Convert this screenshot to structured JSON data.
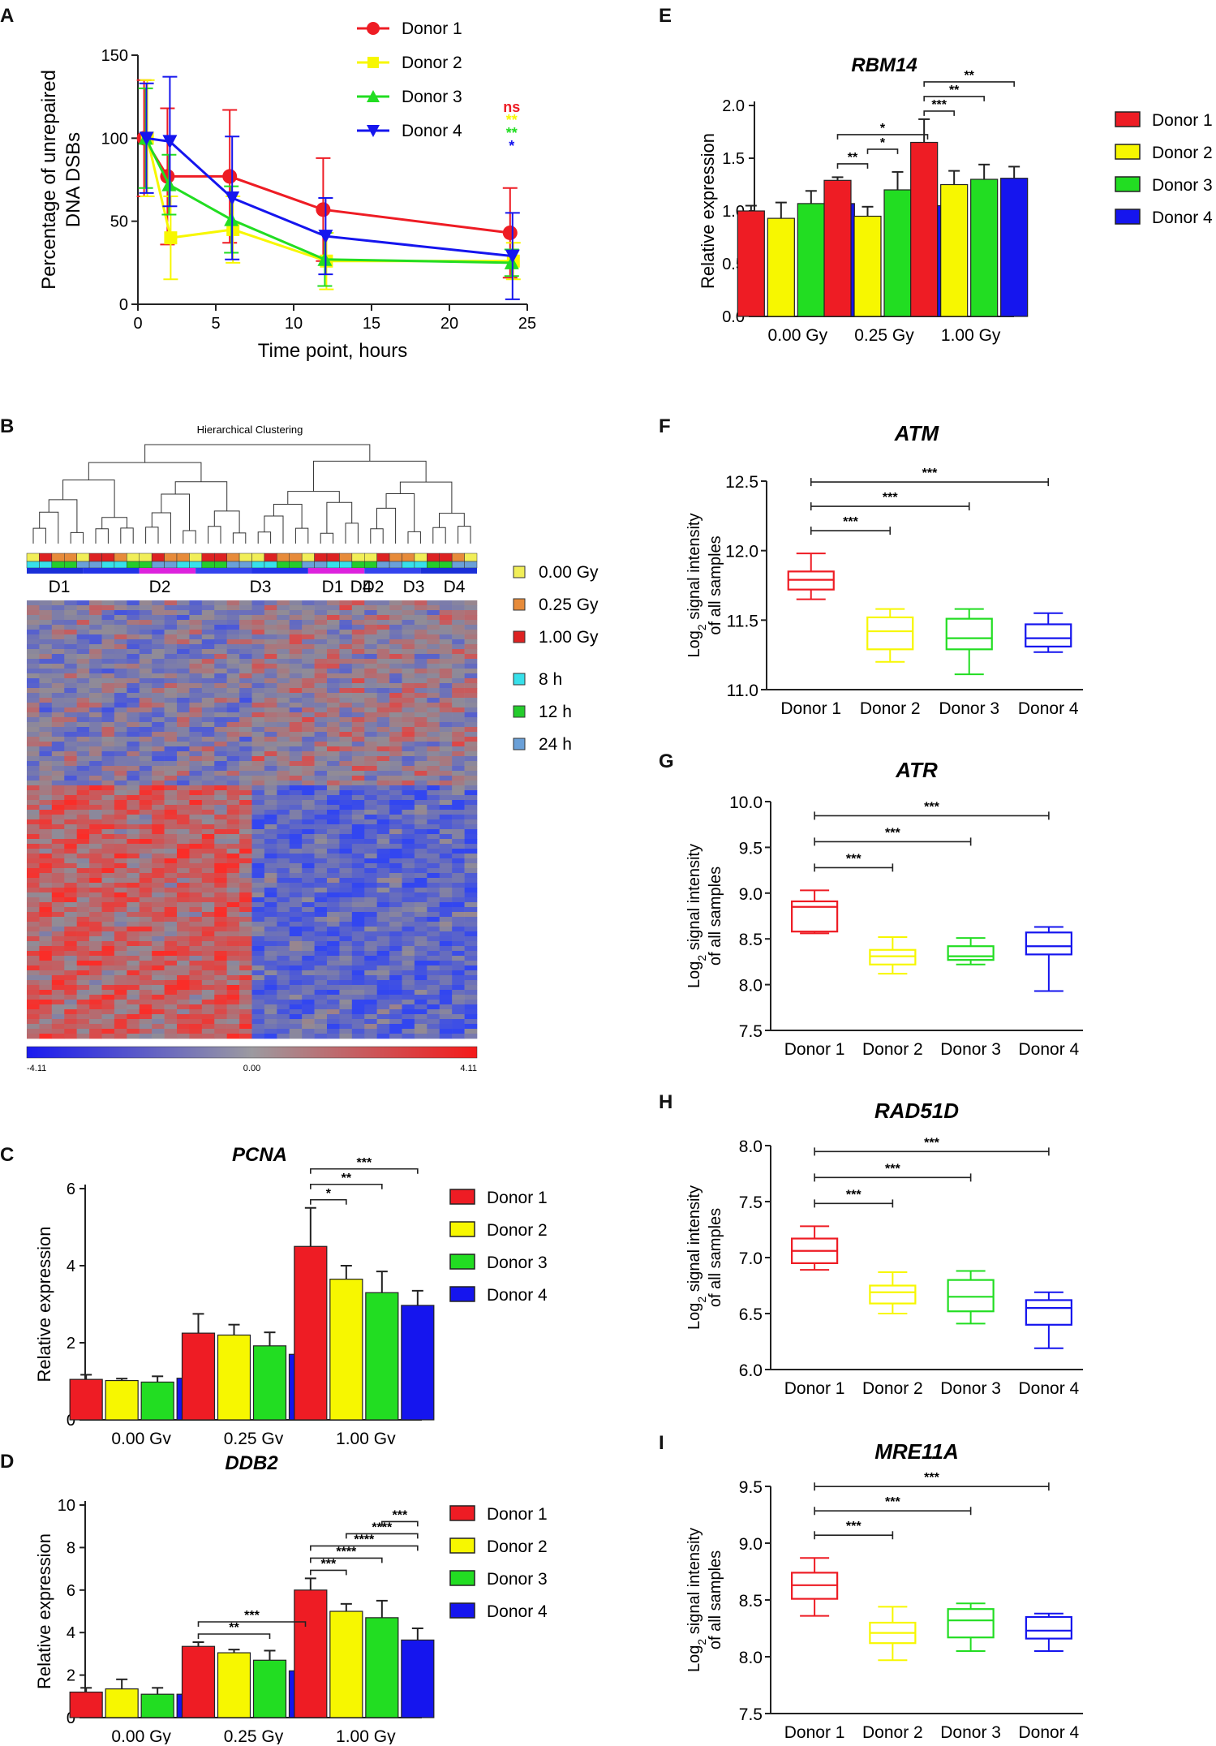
{
  "panels": {
    "A": "A",
    "B": "B",
    "C": "C",
    "D": "D",
    "E": "E",
    "F": "F",
    "G": "G",
    "H": "H",
    "I": "I"
  },
  "colors": {
    "donor1": "#ee1c24",
    "donor2": "#f7f700",
    "donor3": "#22dd22",
    "donor4": "#1515ee"
  },
  "chart_data": [
    {
      "id": "A",
      "type": "line",
      "xlabel": "Time point, hours",
      "ylabel": "Percentage of unrepaired DNA DSBs",
      "xlim": [
        0,
        25
      ],
      "ylim": [
        0,
        150
      ],
      "xticks": [
        0,
        5,
        10,
        15,
        20,
        25
      ],
      "yticks": [
        0,
        50,
        100,
        150
      ],
      "series": [
        {
          "name": "Donor 1",
          "marker": "circle",
          "x": [
            0.5,
            2,
            6,
            12,
            24
          ],
          "y": [
            100,
            77,
            77,
            57,
            43
          ],
          "err": [
            35,
            41,
            40,
            31,
            27
          ]
        },
        {
          "name": "Donor 2",
          "marker": "square",
          "x": [
            0.5,
            2,
            6,
            12,
            24
          ],
          "y": [
            100,
            40,
            45,
            26,
            26
          ],
          "err": [
            35,
            25,
            20,
            17,
            11
          ]
        },
        {
          "name": "Donor 3",
          "marker": "triangle-up",
          "x": [
            0.5,
            2,
            6,
            12,
            24
          ],
          "y": [
            100,
            72,
            51,
            27,
            25
          ],
          "err": [
            30,
            18,
            20,
            16,
            8
          ]
        },
        {
          "name": "Donor 4",
          "marker": "triangle-down",
          "x": [
            0.5,
            2,
            6,
            12,
            24
          ],
          "y": [
            100,
            98,
            64,
            41,
            29
          ],
          "err": [
            33,
            39,
            37,
            23,
            26
          ]
        }
      ],
      "annotations": [
        {
          "text": "ns",
          "series": 0
        },
        {
          "text": "**",
          "series": 1
        },
        {
          "text": "**",
          "series": 2
        },
        {
          "text": "*",
          "series": 3
        }
      ]
    },
    {
      "id": "E",
      "type": "bar",
      "title": "RBM14",
      "ylabel": "Relative expression",
      "categories": [
        "0.00 Gy",
        "0.25 Gy",
        "1.00 Gy"
      ],
      "ylim": [
        0,
        2.0
      ],
      "yticks": [
        "0.0",
        "0.5",
        "1.0",
        "1.5",
        "2.0"
      ],
      "series": [
        {
          "name": "Donor 1",
          "values": [
            1.0,
            1.29,
            1.65
          ],
          "err": [
            0.05,
            0.03,
            0.22
          ]
        },
        {
          "name": "Donor 2",
          "values": [
            0.93,
            0.95,
            1.25
          ],
          "err": [
            0.15,
            0.09,
            0.13
          ]
        },
        {
          "name": "Donor 3",
          "values": [
            1.07,
            1.2,
            1.3
          ],
          "err": [
            0.12,
            0.17,
            0.14
          ]
        },
        {
          "name": "Donor 4",
          "values": [
            1.07,
            1.05,
            1.31
          ],
          "err": [
            0.07,
            0.19,
            0.11
          ]
        }
      ],
      "significance": [
        {
          "group": 1,
          "from": 0,
          "to": 1,
          "text": "**"
        },
        {
          "group": 1,
          "from": 1,
          "to": 2,
          "text": "*"
        },
        {
          "group": 1,
          "from": 0,
          "to": 3,
          "text": "*"
        },
        {
          "group": 2,
          "from": 0,
          "to": 1,
          "text": "***"
        },
        {
          "group": 2,
          "from": 0,
          "to": 2,
          "text": "**"
        },
        {
          "group": 2,
          "from": 0,
          "to": 3,
          "text": "**"
        }
      ]
    },
    {
      "id": "C",
      "type": "bar",
      "title": "PCNA",
      "ylabel": "Relative expression",
      "categories": [
        "0.00 Gy",
        "0.25 Gy",
        "1.00 Gy"
      ],
      "ylim": [
        0,
        6
      ],
      "yticks": [
        "0",
        "2",
        "4",
        "6"
      ],
      "series": [
        {
          "name": "Donor 1",
          "values": [
            1.05,
            2.25,
            4.5
          ],
          "err": [
            0.12,
            0.5,
            1.0
          ]
        },
        {
          "name": "Donor 2",
          "values": [
            1.02,
            2.2,
            3.65
          ],
          "err": [
            0.05,
            0.27,
            0.35
          ]
        },
        {
          "name": "Donor 3",
          "values": [
            0.98,
            1.92,
            3.3
          ],
          "err": [
            0.15,
            0.35,
            0.55
          ]
        },
        {
          "name": "Donor 4",
          "values": [
            1.08,
            1.7,
            2.97
          ],
          "err": [
            0.17,
            0.25,
            0.38
          ]
        }
      ],
      "significance": [
        {
          "group": 2,
          "from": 0,
          "to": 1,
          "text": "*"
        },
        {
          "group": 2,
          "from": 0,
          "to": 2,
          "text": "**"
        },
        {
          "group": 2,
          "from": 0,
          "to": 3,
          "text": "***"
        }
      ]
    },
    {
      "id": "D",
      "type": "bar",
      "title": "DDB2",
      "ylabel": "Relative expression",
      "categories": [
        "0.00 Gy",
        "0.25 Gy",
        "1.00 Gy"
      ],
      "ylim": [
        0,
        10
      ],
      "yticks": [
        "0",
        "2",
        "4",
        "6",
        "8",
        "10"
      ],
      "series": [
        {
          "name": "Donor 1",
          "values": [
            1.2,
            3.35,
            6.0
          ],
          "err": [
            0.2,
            0.2,
            0.55
          ]
        },
        {
          "name": "Donor 2",
          "values": [
            1.35,
            3.05,
            5.0
          ],
          "err": [
            0.45,
            0.15,
            0.35
          ]
        },
        {
          "name": "Donor 3",
          "values": [
            1.1,
            2.7,
            4.7
          ],
          "err": [
            0.3,
            0.45,
            0.8
          ]
        },
        {
          "name": "Donor 4",
          "values": [
            1.1,
            2.2,
            3.65
          ],
          "err": [
            0.25,
            0.22,
            0.55
          ]
        }
      ],
      "significance": [
        {
          "group": 1,
          "from": 0,
          "to": 2,
          "text": "**"
        },
        {
          "group": 1,
          "from": 0,
          "to": 3,
          "text": "***"
        },
        {
          "group": 2,
          "from": 0,
          "to": 1,
          "text": "***"
        },
        {
          "group": 2,
          "from": 0,
          "to": 2,
          "text": "****"
        },
        {
          "group": 2,
          "from": 0,
          "to": 3,
          "text": "****"
        },
        {
          "group": 2,
          "from": 1,
          "to": 3,
          "text": "****"
        },
        {
          "group": 2,
          "from": 2,
          "to": 3,
          "text": "***"
        }
      ]
    },
    {
      "id": "F",
      "type": "box",
      "title": "ATM",
      "ylabel": "Log2 signal intensity of all samples",
      "categories": [
        "Donor 1",
        "Donor 2",
        "Donor 3",
        "Donor 4"
      ],
      "ylim": [
        11.0,
        12.5
      ],
      "yticks": [
        "11.0",
        "11.5",
        "12.0",
        "12.5"
      ],
      "boxes": [
        {
          "min": 11.65,
          "q1": 11.72,
          "median": 11.79,
          "q3": 11.85,
          "max": 11.98
        },
        {
          "min": 11.2,
          "q1": 11.29,
          "median": 11.42,
          "q3": 11.52,
          "max": 11.58
        },
        {
          "min": 11.11,
          "q1": 11.29,
          "median": 11.37,
          "q3": 11.51,
          "max": 11.58
        },
        {
          "min": 11.27,
          "q1": 11.31,
          "median": 11.37,
          "q3": 11.47,
          "max": 11.55
        }
      ],
      "significance": [
        {
          "from": 0,
          "to": 1,
          "text": "***"
        },
        {
          "from": 0,
          "to": 2,
          "text": "***"
        },
        {
          "from": 0,
          "to": 3,
          "text": "***"
        }
      ]
    },
    {
      "id": "G",
      "type": "box",
      "title": "ATR",
      "ylabel": "Log2 signal intensity of all samples",
      "categories": [
        "Donor 1",
        "Donor 2",
        "Donor 3",
        "Donor 4"
      ],
      "ylim": [
        7.5,
        10.0
      ],
      "yticks": [
        "7.5",
        "8.0",
        "8.5",
        "9.0",
        "9.5",
        "10.0"
      ],
      "boxes": [
        {
          "min": 8.56,
          "q1": 8.58,
          "median": 8.85,
          "q3": 8.91,
          "max": 9.03
        },
        {
          "min": 8.12,
          "q1": 8.22,
          "median": 8.31,
          "q3": 8.38,
          "max": 8.52
        },
        {
          "min": 8.22,
          "q1": 8.27,
          "median": 8.31,
          "q3": 8.42,
          "max": 8.51
        },
        {
          "min": 7.93,
          "q1": 8.33,
          "median": 8.42,
          "q3": 8.57,
          "max": 8.63
        }
      ],
      "significance": [
        {
          "from": 0,
          "to": 1,
          "text": "***"
        },
        {
          "from": 0,
          "to": 2,
          "text": "***"
        },
        {
          "from": 0,
          "to": 3,
          "text": "***"
        }
      ]
    },
    {
      "id": "H",
      "type": "box",
      "title": "RAD51D",
      "ylabel": "Log2 signal intensity of all samples",
      "categories": [
        "Donor 1",
        "Donor 2",
        "Donor 3",
        "Donor 4"
      ],
      "ylim": [
        6.0,
        8.0
      ],
      "yticks": [
        "6.0",
        "6.5",
        "7.0",
        "7.5",
        "8.0"
      ],
      "boxes": [
        {
          "min": 6.89,
          "q1": 6.95,
          "median": 7.06,
          "q3": 7.17,
          "max": 7.28
        },
        {
          "min": 6.5,
          "q1": 6.59,
          "median": 6.69,
          "q3": 6.75,
          "max": 6.87
        },
        {
          "min": 6.41,
          "q1": 6.52,
          "median": 6.65,
          "q3": 6.8,
          "max": 6.88
        },
        {
          "min": 6.19,
          "q1": 6.4,
          "median": 6.55,
          "q3": 6.62,
          "max": 6.69
        }
      ],
      "significance": [
        {
          "from": 0,
          "to": 1,
          "text": "***"
        },
        {
          "from": 0,
          "to": 2,
          "text": "***"
        },
        {
          "from": 0,
          "to": 3,
          "text": "***"
        }
      ]
    },
    {
      "id": "I",
      "type": "box",
      "title": "MRE11A",
      "ylabel": "Log2 signal intensity of all samples",
      "categories": [
        "Donor 1",
        "Donor 2",
        "Donor 3",
        "Donor 4"
      ],
      "ylim": [
        7.5,
        9.5
      ],
      "yticks": [
        "7.5",
        "8.0",
        "8.5",
        "9.0",
        "9.5"
      ],
      "boxes": [
        {
          "min": 8.36,
          "q1": 8.51,
          "median": 8.63,
          "q3": 8.74,
          "max": 8.87
        },
        {
          "min": 7.97,
          "q1": 8.12,
          "median": 8.21,
          "q3": 8.3,
          "max": 8.44
        },
        {
          "min": 8.05,
          "q1": 8.17,
          "median": 8.32,
          "q3": 8.42,
          "max": 8.47
        },
        {
          "min": 8.05,
          "q1": 8.16,
          "median": 8.23,
          "q3": 8.35,
          "max": 8.38
        }
      ],
      "significance": [
        {
          "from": 0,
          "to": 1,
          "text": "***"
        },
        {
          "from": 0,
          "to": 2,
          "text": "***"
        },
        {
          "from": 0,
          "to": 3,
          "text": "***"
        }
      ]
    },
    {
      "id": "B",
      "type": "heatmap",
      "title": "Hierarchical Clustering",
      "group_labels_left": [
        "D1",
        "D2",
        "D3",
        "D4"
      ],
      "group_labels_right": [
        "D1",
        "D2",
        "D3",
        "D4"
      ],
      "scale": {
        "min": "-4.11",
        "mid": "0.00",
        "max": "4.11"
      },
      "legend": [
        {
          "label": "0.00 Gy",
          "color": "#f1ee58"
        },
        {
          "label": "0.25 Gy",
          "color": "#e78b3a"
        },
        {
          "label": "1.00 Gy",
          "color": "#dd2222"
        },
        {
          "label": "8 h",
          "color": "#37e0ea"
        },
        {
          "label": "12 h",
          "color": "#24cc2c"
        },
        {
          "label": "24 h",
          "color": "#6aa0d8"
        }
      ]
    }
  ]
}
